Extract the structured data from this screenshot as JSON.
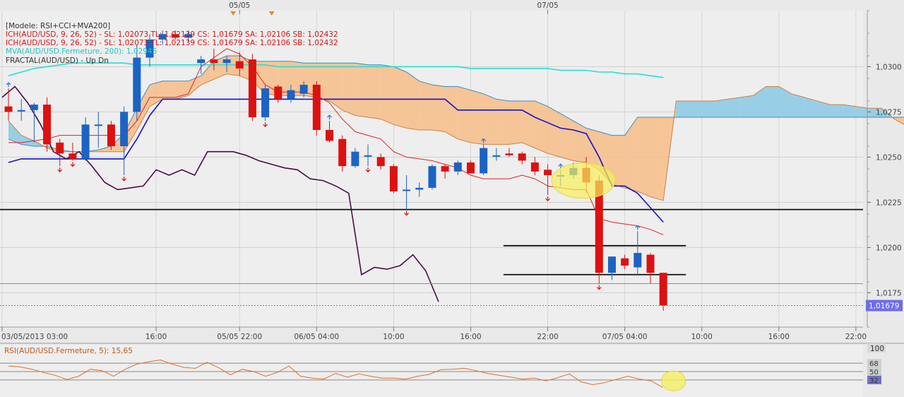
{
  "chart_data": {
    "type": "candlestick",
    "title": "[Modele: RSI+CCI+MVA200]",
    "legend": [
      {
        "text": "ICH(AUD/USD, 9, 26, 52) -  SL: 1,02073  TL: 1,02139  CS: 1,01679  SA: 1,02106  SB: 1,02432",
        "color": "#dd1111"
      },
      {
        "text": "ICH(AUD/USD, 9, 26, 52) -  SL: 1,02073  TL: 1,02139  CS: 1,01679  SA: 1,02106  SB: 1,02432",
        "color": "#dd1111"
      },
      {
        "text": "MVA(AUD/USD.Fermeture, 200): 1,02945",
        "color": "#22c6c6"
      },
      {
        "text": "FRACTAL(AUD/USD) -  Up  Dn",
        "color": "#333333"
      }
    ],
    "top_dates": [
      "05/05",
      "07/05"
    ],
    "x_ticks": [
      "03/05/2013 03:00",
      "16:00",
      "05/05 22:00",
      "06/05 04:00",
      "10:00",
      "16:00",
      "22:00",
      "07/05 04:00",
      "10:00",
      "16:00",
      "22:00"
    ],
    "y_ticks": [
      1.03,
      1.0275,
      1.025,
      1.0225,
      1.02,
      1.0175
    ],
    "y_tick_labels": [
      "1,0300",
      "1,0275",
      "1,0250",
      "1,0225",
      "1,0200",
      "1,0175"
    ],
    "ylim": [
      1.0156,
      1.0331
    ],
    "current_price": 1.01679,
    "current_price_label": "1,01679",
    "candles": [
      {
        "o": 1.0278,
        "h": 1.0288,
        "l": 1.027,
        "c": 1.0275
      },
      {
        "o": 1.0276,
        "h": 1.0282,
        "l": 1.027,
        "c": 1.0276
      },
      {
        "o": 1.0276,
        "h": 1.028,
        "l": 1.0258,
        "c": 1.0279
      },
      {
        "o": 1.0279,
        "h": 1.0283,
        "l": 1.0253,
        "c": 1.0257
      },
      {
        "o": 1.0258,
        "h": 1.026,
        "l": 1.0245,
        "c": 1.0252
      },
      {
        "o": 1.0252,
        "h": 1.0258,
        "l": 1.0248,
        "c": 1.0249
      },
      {
        "o": 1.0249,
        "h": 1.0272,
        "l": 1.0248,
        "c": 1.0268
      },
      {
        "o": 1.0268,
        "h": 1.0275,
        "l": 1.0255,
        "c": 1.0268
      },
      {
        "o": 1.0268,
        "h": 1.027,
        "l": 1.0254,
        "c": 1.0256
      },
      {
        "o": 1.0256,
        "h": 1.0278,
        "l": 1.024,
        "c": 1.0275
      },
      {
        "o": 1.0275,
        "h": 1.0312,
        "l": 1.027,
        "c": 1.0305
      },
      {
        "o": 1.0305,
        "h": 1.0318,
        "l": 1.03,
        "c": 1.0315
      },
      {
        "o": 1.0315,
        "h": 1.032,
        "l": 1.0312,
        "c": 1.0318
      },
      {
        "o": 1.0318,
        "h": 1.032,
        "l": 1.0315,
        "c": 1.0316
      },
      {
        "o": 1.0316,
        "h": 1.032,
        "l": 1.0314,
        "c": 1.0318
      },
      {
        "o": 1.0302,
        "h": 1.0306,
        "l": 1.0296,
        "c": 1.0304
      },
      {
        "o": 1.0304,
        "h": 1.031,
        "l": 1.0298,
        "c": 1.0302
      },
      {
        "o": 1.0302,
        "h": 1.0306,
        "l": 1.0297,
        "c": 1.0304
      },
      {
        "o": 1.0303,
        "h": 1.0308,
        "l": 1.0295,
        "c": 1.0299
      },
      {
        "o": 1.0304,
        "h": 1.0307,
        "l": 1.027,
        "c": 1.0272
      },
      {
        "o": 1.0272,
        "h": 1.029,
        "l": 1.027,
        "c": 1.0288
      },
      {
        "o": 1.0289,
        "h": 1.029,
        "l": 1.028,
        "c": 1.0282
      },
      {
        "o": 1.0282,
        "h": 1.029,
        "l": 1.028,
        "c": 1.0287
      },
      {
        "o": 1.0285,
        "h": 1.0292,
        "l": 1.0283,
        "c": 1.029
      },
      {
        "o": 1.029,
        "h": 1.0292,
        "l": 1.0262,
        "c": 1.0265
      },
      {
        "o": 1.0265,
        "h": 1.027,
        "l": 1.0258,
        "c": 1.0259
      },
      {
        "o": 1.026,
        "h": 1.0262,
        "l": 1.0242,
        "c": 1.0245
      },
      {
        "o": 1.0245,
        "h": 1.0255,
        "l": 1.0244,
        "c": 1.0253
      },
      {
        "o": 1.0251,
        "h": 1.0257,
        "l": 1.0245,
        "c": 1.0251
      },
      {
        "o": 1.025,
        "h": 1.0252,
        "l": 1.0243,
        "c": 1.0245
      },
      {
        "o": 1.0245,
        "h": 1.0246,
        "l": 1.023,
        "c": 1.0231
      },
      {
        "o": 1.0232,
        "h": 1.024,
        "l": 1.0221,
        "c": 1.0232
      },
      {
        "o": 1.0232,
        "h": 1.0236,
        "l": 1.0228,
        "c": 1.0233
      },
      {
        "o": 1.0233,
        "h": 1.0246,
        "l": 1.0232,
        "c": 1.0245
      },
      {
        "o": 1.0245,
        "h": 1.0246,
        "l": 1.0238,
        "c": 1.0242
      },
      {
        "o": 1.0242,
        "h": 1.0248,
        "l": 1.024,
        "c": 1.0247
      },
      {
        "o": 1.0247,
        "h": 1.0248,
        "l": 1.0241,
        "c": 1.0241
      },
      {
        "o": 1.0241,
        "h": 1.0257,
        "l": 1.024,
        "c": 1.0255
      },
      {
        "o": 1.0251,
        "h": 1.0255,
        "l": 1.0248,
        "c": 1.0251
      },
      {
        "o": 1.0252,
        "h": 1.0255,
        "l": 1.025,
        "c": 1.0251
      },
      {
        "o": 1.0252,
        "h": 1.0253,
        "l": 1.0246,
        "c": 1.0248
      },
      {
        "o": 1.0247,
        "h": 1.025,
        "l": 1.024,
        "c": 1.0242
      },
      {
        "o": 1.0243,
        "h": 1.0246,
        "l": 1.0229,
        "c": 1.024
      },
      {
        "o": 1.024,
        "h": 1.0243,
        "l": 1.0234,
        "c": 1.024
      },
      {
        "o": 1.024,
        "h": 1.0247,
        "l": 1.0238,
        "c": 1.0244
      },
      {
        "o": 1.0244,
        "h": 1.025,
        "l": 1.023,
        "c": 1.0236
      },
      {
        "o": 1.0237,
        "h": 1.024,
        "l": 1.018,
        "c": 1.0186
      },
      {
        "o": 1.0186,
        "h": 1.0195,
        "l": 1.0182,
        "c": 1.0195
      },
      {
        "o": 1.0194,
        "h": 1.0196,
        "l": 1.0188,
        "c": 1.019
      },
      {
        "o": 1.0189,
        "h": 1.0209,
        "l": 1.0185,
        "c": 1.0197
      },
      {
        "o": 1.0196,
        "h": 1.0197,
        "l": 1.018,
        "c": 1.0186
      },
      {
        "o": 1.0186,
        "h": 1.0186,
        "l": 1.0165,
        "c": 1.0168
      }
    ],
    "tenkan": [
      1.0258,
      1.0258,
      1.0259,
      1.026,
      1.0262,
      1.0262,
      1.0262,
      1.0262,
      1.0262,
      1.0262,
      1.027,
      1.0283,
      1.0283,
      1.0283,
      1.0285,
      1.03,
      1.0305,
      1.031,
      1.0307,
      1.03,
      1.029,
      1.0286,
      1.0286,
      1.0286,
      1.0284,
      1.028,
      1.0271,
      1.0264,
      1.0262,
      1.026,
      1.0253,
      1.025,
      1.0249,
      1.0248,
      1.0246,
      1.0244,
      1.024,
      1.0238,
      1.0238,
      1.0238,
      1.024,
      1.0238,
      1.0234,
      1.0233,
      1.0232,
      1.0232,
      1.0216,
      1.0214,
      1.0213,
      1.0212,
      1.021,
      1.0207
    ],
    "kijun": [
      1.0247,
      1.0249,
      1.0249,
      1.0249,
      1.0249,
      1.0249,
      1.0249,
      1.0249,
      1.0249,
      1.0249,
      1.026,
      1.0273,
      1.0282,
      1.0282,
      1.0282,
      1.0282,
      1.0282,
      1.0282,
      1.0282,
      1.0282,
      1.0282,
      1.0282,
      1.0282,
      1.0282,
      1.0282,
      1.0282,
      1.0282,
      1.0282,
      1.0282,
      1.0282,
      1.0282,
      1.0282,
      1.0282,
      1.0282,
      1.0282,
      1.0276,
      1.0276,
      1.0276,
      1.0276,
      1.0276,
      1.0276,
      1.0272,
      1.0269,
      1.0266,
      1.0265,
      1.0263,
      1.025,
      1.0234,
      1.0234,
      1.023,
      1.0222,
      1.0214
    ],
    "chikou": [
      1.0283,
      1.0289,
      1.028,
      1.0268,
      1.0253,
      1.0249,
      1.0253,
      1.0245,
      1.0236,
      1.0232,
      1.0233,
      1.0234,
      1.0243,
      1.024,
      1.0243,
      1.024,
      1.0253,
      1.0253,
      1.0253,
      1.0251,
      1.0248,
      1.0246,
      1.0244,
      1.0243,
      1.0238,
      1.0237,
      1.0234,
      1.023,
      1.0185,
      1.0189,
      1.0188,
      1.019,
      1.0196,
      1.0187,
      1.017
    ],
    "senkou_a": [
      1.027,
      1.0262,
      1.0259,
      1.0255,
      1.0253,
      1.0253,
      1.0253,
      1.0253,
      1.0253,
      1.0253,
      1.0265,
      1.0278,
      1.0282,
      1.0282,
      1.0284,
      1.029,
      1.0293,
      1.0296,
      1.0295,
      1.0292,
      1.0285,
      1.0284,
      1.0284,
      1.0284,
      1.0283,
      1.0281,
      1.0276,
      1.0273,
      1.0272,
      1.0271,
      1.0268,
      1.0266,
      1.0265,
      1.0265,
      1.0264,
      1.026,
      1.0258,
      1.0257,
      1.0257,
      1.0257,
      1.0258,
      1.0255,
      1.0252,
      1.025,
      1.0248,
      1.0247,
      1.0243,
      1.0235,
      1.0233,
      1.0231,
      1.0228,
      1.0226,
      1.0281,
      1.0281,
      1.0281,
      1.0281,
      1.0282,
      1.0283,
      1.0284,
      1.0289,
      1.0289,
      1.0285,
      1.0283,
      1.0281,
      1.0279,
      1.0279,
      1.0278,
      1.0277,
      1.0277,
      1.0271,
      1.0267,
      1.0264,
      1.0262
    ],
    "senkou_b": [
      1.026,
      1.0257,
      1.0256,
      1.0256,
      1.0254,
      1.0253,
      1.0253,
      1.0254,
      1.0256,
      1.0263,
      1.0277,
      1.029,
      1.0292,
      1.0292,
      1.0292,
      1.0295,
      1.0303,
      1.0306,
      1.0306,
      1.0303,
      1.0303,
      1.0303,
      1.0303,
      1.0302,
      1.0302,
      1.0302,
      1.0302,
      1.0302,
      1.0301,
      1.0301,
      1.03,
      1.0297,
      1.0292,
      1.029,
      1.0289,
      1.0289,
      1.0287,
      1.0285,
      1.0282,
      1.0281,
      1.0281,
      1.0281,
      1.0278,
      1.0274,
      1.027,
      1.0266,
      1.0264,
      1.0262,
      1.0262,
      1.0272,
      1.0272,
      1.0272,
      1.0272,
      1.0272,
      1.0272,
      1.0272,
      1.0272,
      1.0272,
      1.0272,
      1.0272,
      1.0272,
      1.0272,
      1.0272,
      1.0272,
      1.0272,
      1.0272,
      1.0272,
      1.0272,
      1.0272,
      1.0272,
      1.0272,
      1.0272,
      1.0272
    ],
    "mva200": [
      1.0295,
      1.0297,
      1.0299,
      1.03,
      1.0301,
      1.0302,
      1.0302,
      1.0302,
      1.0302,
      1.0302,
      1.0301,
      1.0301,
      1.0301,
      1.0301,
      1.0301,
      1.0301,
      1.0301,
      1.0301,
      1.0301,
      1.0301,
      1.0301,
      1.03,
      1.03,
      1.03,
      1.03,
      1.03,
      1.03,
      1.03,
      1.03,
      1.03,
      1.03,
      1.03,
      1.03,
      1.03,
      1.03,
      1.03,
      1.0299,
      1.0299,
      1.0299,
      1.0299,
      1.0299,
      1.0299,
      1.0299,
      1.0298,
      1.0298,
      1.0298,
      1.0297,
      1.0297,
      1.0296,
      1.0296,
      1.0295,
      1.0294
    ],
    "fractals_up": [
      0,
      25,
      37,
      43,
      49
    ],
    "fractals_down": [
      4,
      5,
      9,
      20,
      28,
      31,
      42,
      46
    ],
    "horizontal_lines": [
      1.0221,
      1.018
    ],
    "trend_segments": [
      [
        38,
        51,
        1.0201,
        1.0201
      ],
      [
        38,
        51,
        1.0185,
        1.0185
      ]
    ],
    "rsi": {
      "label": "RSI(AUD/USD.Fermeture, 5): 15,65",
      "ylim": [
        0,
        100
      ],
      "levels": [
        68,
        50,
        32
      ],
      "level_labels": [
        "68",
        "50",
        "32"
      ],
      "max_label": "100",
      "values": [
        62,
        60,
        55,
        48,
        42,
        33,
        40,
        55,
        52,
        40,
        55,
        66,
        71,
        75,
        66,
        59,
        57,
        70,
        58,
        43,
        55,
        50,
        40,
        48,
        62,
        40,
        36,
        34,
        46,
        38,
        45,
        40,
        36,
        36,
        34,
        40,
        44,
        54,
        55,
        57,
        52,
        46,
        42,
        38,
        34,
        36,
        30,
        37,
        45,
        28,
        22,
        26,
        33,
        40,
        34,
        30,
        16
      ]
    },
    "highlights": [
      "ellipse-ichimoku-cross",
      "ellipse-rsi"
    ]
  }
}
